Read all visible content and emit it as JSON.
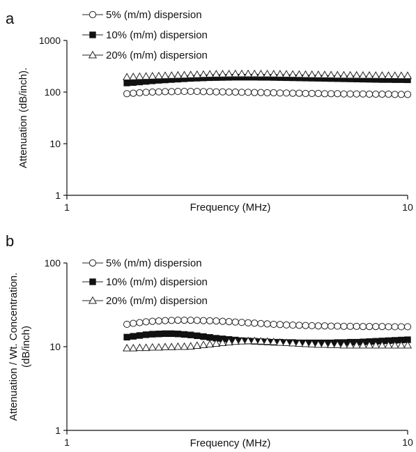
{
  "chart_data": [
    {
      "panel_label": "a",
      "type": "scatter",
      "x_scale": "log",
      "y_scale": "log",
      "xlim": [
        1,
        10
      ],
      "ylim": [
        1,
        1000
      ],
      "xlabel": "Frequency (MHz)",
      "ylabel": "Attenuation (dB/inch).",
      "ylabel_lines": [],
      "x_ticks": [
        "1",
        "10"
      ],
      "y_ticks": [
        "1",
        "10",
        "100",
        "1000"
      ],
      "legend_placement": "top-left",
      "grid": false,
      "series": [
        {
          "name": "5% (m/m) dispersion",
          "marker": "open-circle",
          "x_range": [
            1.5,
            10
          ],
          "points": 45,
          "y": [
            93,
            95,
            97,
            99,
            100,
            101,
            102,
            102,
            103,
            103,
            103,
            103,
            102,
            102,
            101,
            101,
            100,
            100,
            99,
            99,
            98,
            98,
            97,
            97,
            96,
            96,
            95,
            95,
            94,
            94,
            94,
            93,
            93,
            93,
            92,
            92,
            92,
            92,
            91,
            91,
            91,
            91,
            90,
            90,
            90
          ]
        },
        {
          "name": "10% (m/m) dispersion",
          "marker": "filled-square",
          "x_range": [
            1.5,
            10
          ],
          "points": 45,
          "y": [
            150,
            153,
            157,
            161,
            165,
            169,
            172,
            175,
            178,
            181,
            184,
            186,
            188,
            190,
            191,
            192,
            193,
            194,
            194,
            194,
            194,
            193,
            193,
            192,
            191,
            190,
            189,
            188,
            187,
            186,
            185,
            184,
            183,
            182,
            181,
            180,
            179,
            178,
            177,
            176,
            175,
            175,
            174,
            174,
            173
          ]
        },
        {
          "name": "20% (m/m) dispersion",
          "marker": "open-triangle",
          "x_range": [
            1.5,
            10
          ],
          "points": 45,
          "y": [
            195,
            197,
            199,
            201,
            203,
            205,
            207,
            209,
            211,
            213,
            215,
            217,
            219,
            221,
            222,
            223,
            224,
            225,
            225,
            225,
            225,
            224,
            224,
            223,
            222,
            221,
            220,
            219,
            218,
            217,
            216,
            215,
            214,
            213,
            212,
            211,
            211,
            210,
            210,
            209,
            209,
            208,
            208,
            207,
            207
          ]
        }
      ]
    },
    {
      "panel_label": "b",
      "type": "scatter",
      "x_scale": "log",
      "y_scale": "log",
      "xlim": [
        1,
        10
      ],
      "ylim": [
        1,
        100
      ],
      "xlabel": "Frequency (MHz)",
      "ylabel": "",
      "ylabel_lines": [
        "Attenuation / Wt. Concentration.",
        "(dB/inch)"
      ],
      "x_ticks": [
        "1",
        "10"
      ],
      "y_ticks": [
        "1",
        "10",
        "100"
      ],
      "legend_placement": "top-left",
      "grid": false,
      "series": [
        {
          "name": "5% (m/m) dispersion",
          "marker": "open-circle",
          "x_range": [
            1.5,
            10
          ],
          "points": 45,
          "y": [
            18.5,
            19.0,
            19.4,
            19.8,
            20.1,
            20.3,
            20.5,
            20.6,
            20.7,
            20.7,
            20.7,
            20.6,
            20.5,
            20.4,
            20.3,
            20.1,
            19.9,
            19.7,
            19.5,
            19.3,
            19.1,
            18.9,
            18.7,
            18.5,
            18.4,
            18.2,
            18.1,
            18.0,
            17.9,
            17.8,
            17.7,
            17.7,
            17.6,
            17.6,
            17.5,
            17.5,
            17.5,
            17.4,
            17.4,
            17.4,
            17.4,
            17.3,
            17.3,
            17.3,
            17.3
          ]
        },
        {
          "name": "10% (m/m) dispersion",
          "marker": "filled-square",
          "x_range": [
            1.5,
            10
          ],
          "points": 45,
          "y": [
            13.0,
            13.3,
            13.6,
            13.9,
            14.1,
            14.2,
            14.3,
            14.3,
            14.2,
            14.0,
            13.8,
            13.5,
            13.2,
            12.9,
            12.6,
            12.4,
            12.2,
            12.0,
            11.8,
            11.7,
            11.6,
            11.5,
            11.4,
            11.3,
            11.3,
            11.2,
            11.2,
            11.1,
            11.1,
            11.1,
            11.1,
            11.1,
            11.1,
            11.2,
            11.2,
            11.3,
            11.3,
            11.4,
            11.5,
            11.6,
            11.7,
            11.8,
            11.9,
            12.0,
            12.1
          ]
        },
        {
          "name": "20% (m/m) dispersion",
          "marker": "open-triangle",
          "x_range": [
            1.5,
            10
          ],
          "points": 45,
          "y": [
            9.6,
            9.6,
            9.7,
            9.7,
            9.8,
            9.8,
            9.9,
            9.9,
            10.0,
            10.0,
            10.1,
            10.3,
            10.5,
            10.7,
            10.9,
            11.1,
            11.3,
            11.5,
            11.6,
            11.7,
            11.7,
            11.6,
            11.5,
            11.4,
            11.2,
            11.1,
            11.0,
            10.9,
            10.8,
            10.7,
            10.6,
            10.6,
            10.5,
            10.5,
            10.4,
            10.4,
            10.4,
            10.4,
            10.4,
            10.4,
            10.4,
            10.4,
            10.4,
            10.4,
            10.4
          ]
        }
      ]
    }
  ]
}
